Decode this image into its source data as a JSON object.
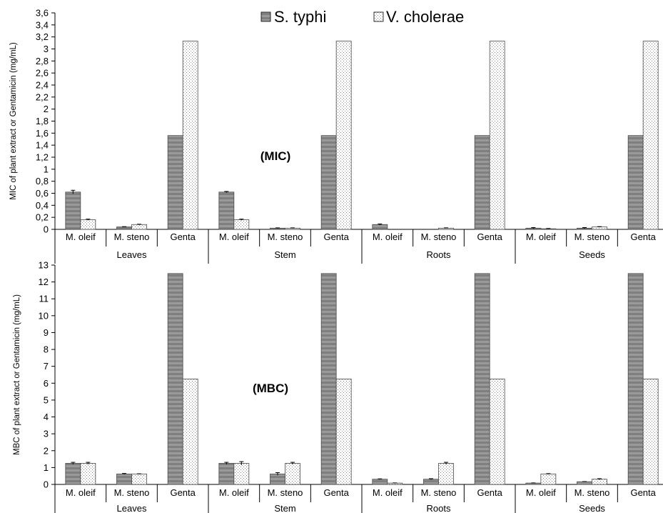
{
  "legend": [
    {
      "label": "S. typhi",
      "color": "#7f7f7f",
      "pattern": "horizontal-stripes"
    },
    {
      "label": "V. cholerae",
      "color": "#ffffff",
      "pattern": "dots"
    }
  ],
  "chart_data": [
    {
      "type": "bar",
      "annotation": "(MIC)",
      "ylabel": "MIC of plant extract or Gentamicin (mg/mL)",
      "ylim": [
        0,
        3.6
      ],
      "yticks": [
        "0",
        "0,2",
        "0,4",
        "0,6",
        "0,8",
        "1",
        "1,2",
        "1,4",
        "1,6",
        "1,8",
        "2",
        "2,2",
        "2,4",
        "2,6",
        "2,8",
        "3",
        "3,2",
        "3,4",
        "3,6"
      ],
      "groups": [
        "Leaves",
        "Stem",
        "Roots",
        "Seeds"
      ],
      "categories": [
        "M. oleif",
        "M. steno",
        "Genta"
      ],
      "series": [
        {
          "name": "S. typhi",
          "values": [
            [
              0.62,
              0.04,
              1.56
            ],
            [
              0.62,
              0.02,
              1.56
            ],
            [
              0.08,
              0.0,
              1.56
            ],
            [
              0.02,
              0.02,
              1.56
            ]
          ],
          "errors": [
            [
              0.03,
              0.005,
              0
            ],
            [
              0.01,
              0.005,
              0
            ],
            [
              0.01,
              0,
              0
            ],
            [
              0.01,
              0.01,
              0
            ]
          ]
        },
        {
          "name": "V. cholerae",
          "values": [
            [
              0.16,
              0.08,
              3.13
            ],
            [
              0.16,
              0.02,
              3.13
            ],
            [
              0.0,
              0.02,
              3.13
            ],
            [
              0.01,
              0.04,
              3.13
            ]
          ],
          "errors": [
            [
              0.01,
              0.005,
              0
            ],
            [
              0.01,
              0.005,
              0
            ],
            [
              0,
              0.005,
              0
            ],
            [
              0.005,
              0.005,
              0
            ]
          ]
        }
      ]
    },
    {
      "type": "bar",
      "annotation": "(MBC)",
      "ylabel": "MBC of plant extract or Gentamicin (mg/mL)",
      "ylim": [
        0,
        13
      ],
      "yticks": [
        "0",
        "1",
        "2",
        "3",
        "4",
        "5",
        "6",
        "7",
        "8",
        "9",
        "10",
        "11",
        "12",
        "13"
      ],
      "groups": [
        "Leaves",
        "Stem",
        "Roots",
        "Seeds"
      ],
      "categories": [
        "M. oleif",
        "M. steno",
        "Genta"
      ],
      "series": [
        {
          "name": "S. typhi",
          "values": [
            [
              1.25,
              0.62,
              12.5
            ],
            [
              1.25,
              0.62,
              12.5
            ],
            [
              0.31,
              0.31,
              12.5
            ],
            [
              0.08,
              0.16,
              12.5
            ]
          ],
          "errors": [
            [
              0.06,
              0.03,
              0
            ],
            [
              0.06,
              0.08,
              0
            ],
            [
              0.02,
              0.03,
              0
            ],
            [
              0.01,
              0.01,
              0
            ]
          ]
        },
        {
          "name": "V. cholerae",
          "values": [
            [
              1.25,
              0.62,
              6.25
            ],
            [
              1.25,
              1.25,
              6.25
            ],
            [
              0.08,
              1.25,
              6.25
            ],
            [
              0.62,
              0.31,
              6.25
            ]
          ],
          "errors": [
            [
              0.06,
              0.01,
              0
            ],
            [
              0.1,
              0.06,
              0
            ],
            [
              0.01,
              0.06,
              0
            ],
            [
              0.02,
              0.03,
              0
            ]
          ]
        }
      ]
    }
  ]
}
